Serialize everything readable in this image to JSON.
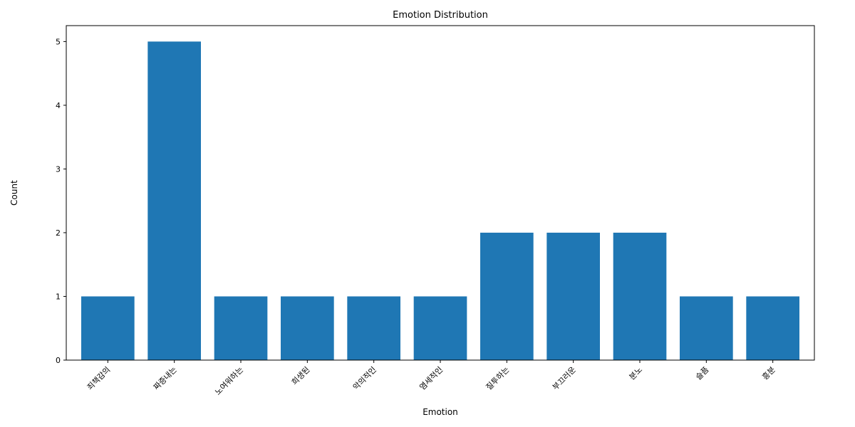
{
  "chart_data": {
    "type": "bar",
    "title": "Emotion Distribution",
    "xlabel": "Emotion",
    "ylabel": "Count",
    "categories": [
      "죄책감의",
      "짜증내는",
      "노여워하는",
      "희생된",
      "악의적인",
      "염세적인",
      "질투하는",
      "부끄러운",
      "분노",
      "슬픔",
      "흥분"
    ],
    "values": [
      1,
      5,
      1,
      1,
      1,
      1,
      2,
      2,
      2,
      1,
      1
    ],
    "ylim": [
      0,
      5.25
    ],
    "yticks": [
      0,
      1,
      2,
      3,
      4,
      5
    ],
    "bar_color": "#1f77b4",
    "grid": false,
    "legend": "none"
  }
}
